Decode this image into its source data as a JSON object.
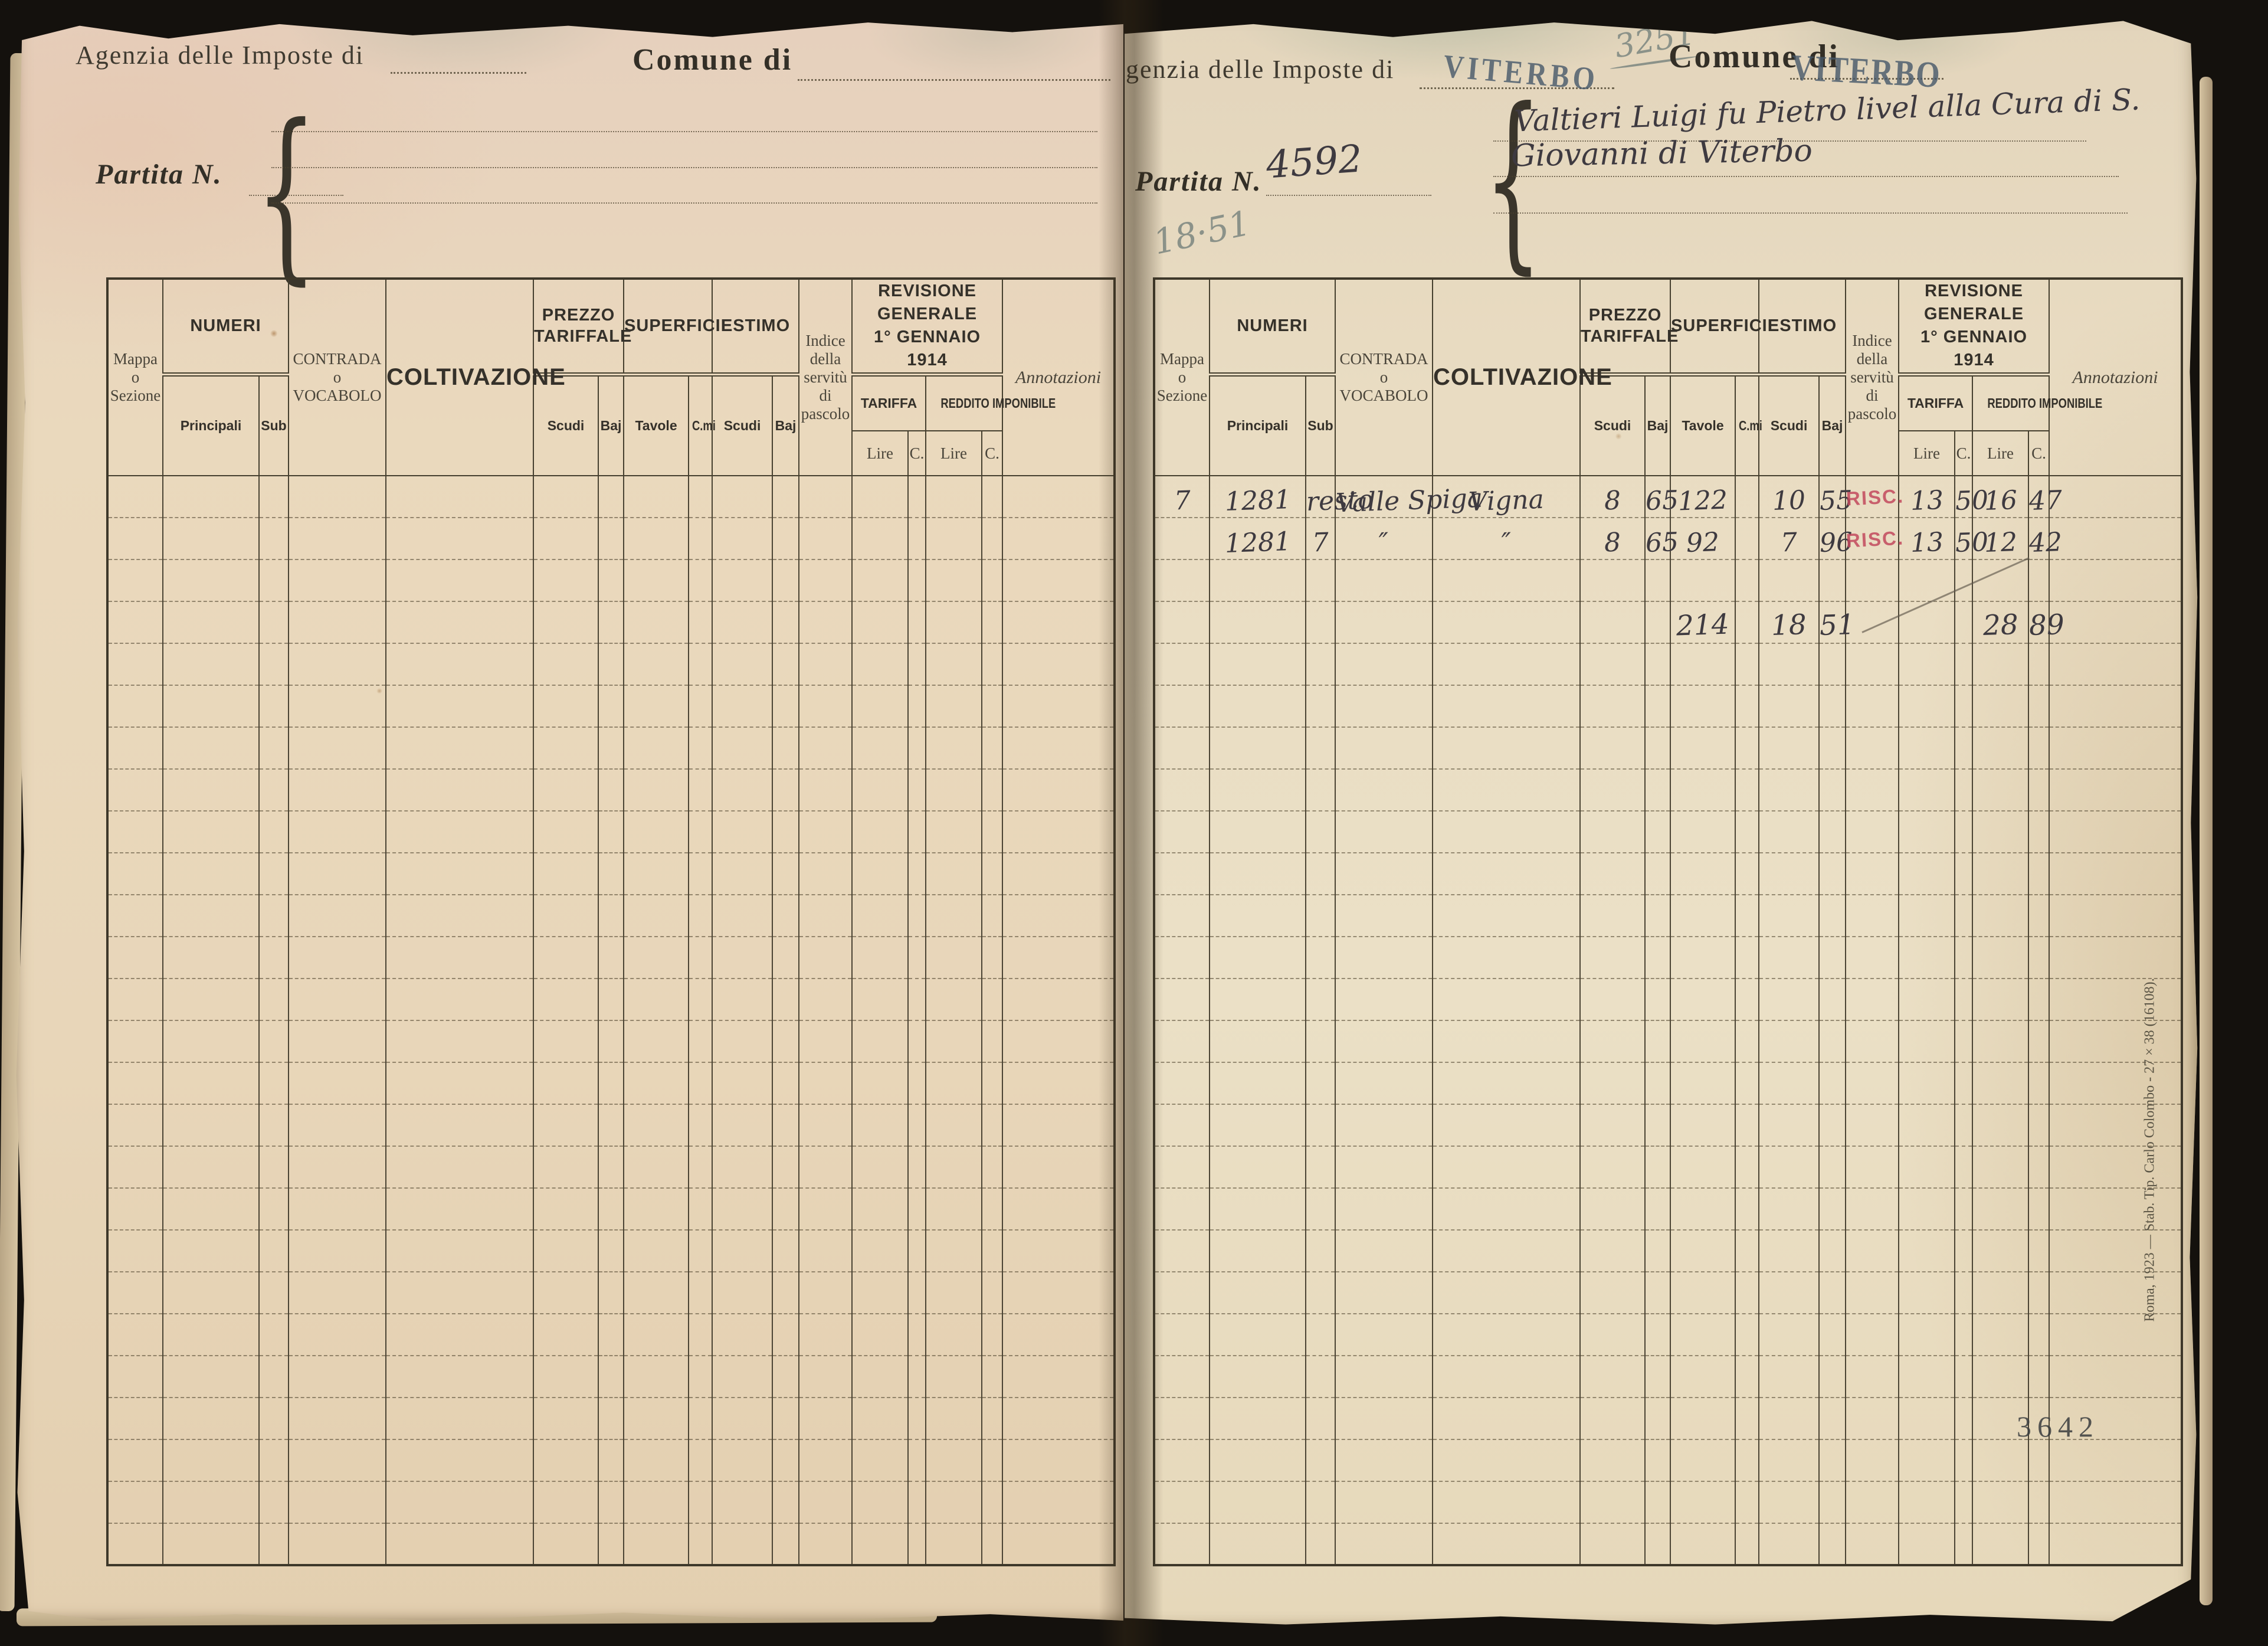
{
  "colors": {
    "ink": "#3e3a40",
    "pencil": "#8b9289",
    "stamp_blue": "#46586a",
    "stamp_red": "#c34a5e"
  },
  "columns": {
    "mappa_l1": "Mappa",
    "mappa_l2": "o",
    "mappa_l3": "Sezione",
    "numeri": "NUMERI",
    "principali": "Principali",
    "sub": "Sub",
    "contrada_l1": "CONTRADA",
    "contrada_l2": "o",
    "contrada_l3": "VOCABOLO",
    "coltivazione": "COLTIVAZIONE",
    "prezzo": "PREZZO TARIFFALE",
    "superficie": "SUPERFICIE",
    "estimo": "ESTIMO",
    "scudi": "Scudi",
    "baj": "Baj",
    "tavole": "Tavole",
    "cmi": "C.mi",
    "indice_l1": "Indice",
    "indice_l2": "della",
    "indice_l3": "servitù",
    "indice_l4": "di",
    "indice_l5": "pascolo",
    "revisione_l1": "REVISIONE GENERALE",
    "revisione_l2": "1° GENNAIO 1914",
    "tariffa": "TARIFFA",
    "reddito": "REDDITO IMPONIBILE",
    "lire": "Lire",
    "c": "C.",
    "annotazioni": "Annotazioni"
  },
  "left_page": {
    "agency_label": "Agenzia delle Imposte di",
    "comune_label": "Comune di",
    "partita_label": "Partita N."
  },
  "right_page": {
    "agency_label": "genzia delle Imposte di",
    "agency_stamp": "VITERBO",
    "comune_label": "Comune di",
    "comune_stamp": "VITERBO",
    "pencil_folio": "3251",
    "partita_label": "Partita N.",
    "partita_value": "4592",
    "pencil_estimo": "18·51",
    "owner_line1": "Valtieri Luigi fu Pietro livel alla Cura di S.",
    "owner_line2": "Giovanni di Viterbo",
    "folio_stamp": "3642",
    "printer_imprint": "Roma, 1923 — Stab. Tip. Carlo Colombo - 27 × 38 (16108).",
    "rows": [
      {
        "row_index": 0,
        "mappa": "7",
        "principali": "1281",
        "sub": "resto",
        "contrada": "Valle Spiga",
        "coltivazione": "Vigna",
        "prezzo_scudi": "8",
        "prezzo_baj": "65",
        "tavole": "122",
        "cmi": "",
        "estimo_scudi": "10",
        "estimo_baj": "55",
        "indice_stamp": "RISC.",
        "tariffa_lire": "13",
        "tariffa_c": "50",
        "reddito_lire": "16",
        "reddito_c": "47",
        "annotazioni": ""
      },
      {
        "row_index": 1,
        "mappa": "",
        "principali": "1281",
        "sub": "7",
        "contrada": "″",
        "coltivazione": "″",
        "prezzo_scudi": "8",
        "prezzo_baj": "65",
        "tavole": "92",
        "cmi": "",
        "estimo_scudi": "7",
        "estimo_baj": "96",
        "indice_stamp": "RISC.",
        "tariffa_lire": "13",
        "tariffa_c": "50",
        "reddito_lire": "12",
        "reddito_c": "42",
        "annotazioni": ""
      },
      {
        "row_index": 3,
        "is_total": true,
        "mappa": "",
        "principali": "",
        "sub": "",
        "contrada": "",
        "coltivazione": "",
        "prezzo_scudi": "",
        "prezzo_baj": "",
        "tavole": "214",
        "cmi": "",
        "estimo_scudi": "18",
        "estimo_baj": "51",
        "indice_stamp": "",
        "tariffa_lire": "",
        "tariffa_c": "",
        "reddito_lire": "28",
        "reddito_c": "89",
        "annotazioni": ""
      }
    ]
  }
}
